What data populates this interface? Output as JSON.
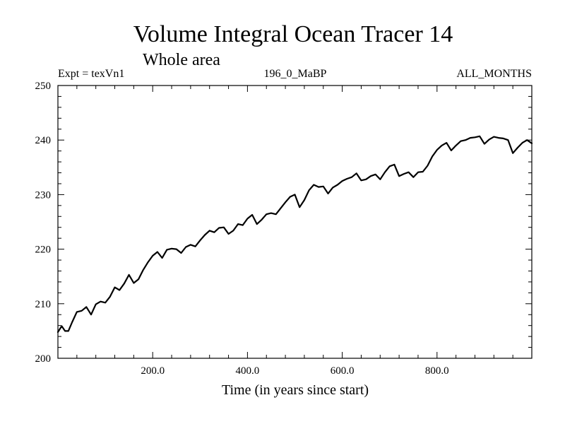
{
  "chart_data": {
    "type": "line",
    "title": "Volume Integral Ocean Tracer 14",
    "subtitle": "Whole area",
    "experiment": "Expt = texVn1",
    "period": "196_0_MaBP",
    "months": "ALL_MONTHS",
    "xlabel": "Time (in years since start)",
    "ylabel": "",
    "xlim": [
      0,
      1000
    ],
    "ylim": [
      200,
      250
    ],
    "x_ticks": [
      200,
      400,
      600,
      800
    ],
    "x_tick_labels": [
      "200.0",
      "400.0",
      "600.0",
      "800.0"
    ],
    "y_ticks": [
      200,
      210,
      220,
      230,
      240,
      250
    ],
    "y_tick_labels": [
      "200",
      "210",
      "220",
      "230",
      "240",
      "250"
    ],
    "series": [
      {
        "name": "Volume Integral Ocean Tracer 14",
        "x": [
          0,
          8,
          15,
          22,
          30,
          40,
          50,
          60,
          70,
          80,
          90,
          100,
          110,
          120,
          130,
          140,
          150,
          160,
          170,
          180,
          190,
          200,
          210,
          220,
          230,
          240,
          250,
          260,
          270,
          280,
          290,
          300,
          310,
          320,
          330,
          340,
          350,
          360,
          370,
          380,
          390,
          400,
          410,
          420,
          430,
          440,
          450,
          460,
          470,
          480,
          490,
          500,
          510,
          520,
          530,
          540,
          550,
          560,
          570,
          580,
          590,
          600,
          610,
          620,
          630,
          640,
          650,
          660,
          670,
          680,
          690,
          700,
          710,
          720,
          730,
          740,
          750,
          760,
          770,
          780,
          790,
          800,
          810,
          820,
          830,
          840,
          850,
          860,
          870,
          880,
          890,
          900,
          910,
          920,
          930,
          940,
          950,
          960,
          970,
          980,
          990,
          1000
        ],
        "values": [
          204.8,
          205.9,
          205.0,
          205.0,
          206.6,
          208.5,
          208.7,
          209.4,
          208.0,
          209.9,
          210.4,
          210.2,
          211.3,
          213.0,
          212.5,
          213.7,
          215.3,
          213.8,
          214.5,
          216.2,
          217.6,
          218.8,
          219.5,
          218.4,
          219.9,
          220.1,
          220.0,
          219.3,
          220.4,
          220.8,
          220.5,
          221.6,
          222.6,
          223.4,
          223.1,
          223.9,
          224.0,
          222.8,
          223.4,
          224.6,
          224.4,
          225.6,
          226.3,
          224.6,
          225.4,
          226.4,
          226.6,
          226.4,
          227.5,
          228.6,
          229.6,
          230.0,
          227.7,
          229.0,
          230.8,
          231.8,
          231.4,
          231.5,
          230.2,
          231.3,
          231.8,
          232.5,
          232.9,
          233.2,
          233.9,
          232.6,
          232.8,
          233.4,
          233.7,
          232.8,
          234.1,
          235.2,
          235.5,
          233.4,
          233.8,
          234.1,
          233.2,
          234.1,
          234.2,
          235.3,
          237.0,
          238.2,
          239.0,
          239.5,
          238.1,
          239.0,
          239.8,
          240.0,
          240.4,
          240.5,
          240.7,
          239.3,
          240.1,
          240.6,
          240.4,
          240.3,
          240.0,
          237.6,
          238.6,
          239.5,
          240.0,
          239.4
        ]
      }
    ]
  }
}
